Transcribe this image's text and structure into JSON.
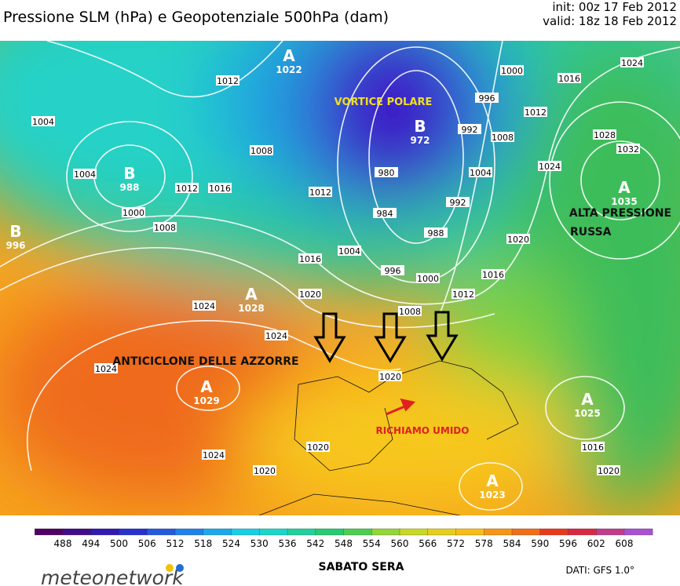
{
  "header": {
    "title": "Pressione SLM (hPa) e Geopotenziale 500hPa (dam)",
    "init": "init: 00z 17 Feb 2012",
    "valid": "valid: 18z 18 Feb 2012"
  },
  "map": {
    "centers": [
      {
        "letter": "A",
        "value": "1022"
      },
      {
        "letter": "B",
        "value": "972"
      },
      {
        "letter": "B",
        "value": "988"
      },
      {
        "letter": "B",
        "value": "996"
      },
      {
        "letter": "A",
        "value": "1035"
      },
      {
        "letter": "A",
        "value": "1028"
      },
      {
        "letter": "A",
        "value": "1029"
      },
      {
        "letter": "A",
        "value": "1025"
      },
      {
        "letter": "A",
        "value": "1023"
      }
    ],
    "annotations": {
      "polar_vortex": "VORTICE POLARE",
      "russian_high": [
        "ALTA PRESSIONE",
        "RUSSA"
      ],
      "azores_high": "ANTICICLONE DELLE AZZORRE",
      "humid_flow": "RICHIAMO UMIDO"
    },
    "isobar_labels": [
      "1012",
      "1004",
      "1004",
      "1008",
      "1012",
      "1016",
      "1000",
      "1008",
      "1012",
      "1016",
      "1020",
      "1024",
      "1024",
      "1024",
      "1024",
      "1020",
      "1020",
      "1020",
      "980",
      "984",
      "1004",
      "996",
      "988",
      "992",
      "1000",
      "1008",
      "1012",
      "1016",
      "1020",
      "1024",
      "1028",
      "1032",
      "1004",
      "1008",
      "996",
      "1000",
      "1012",
      "1016",
      "1024",
      "1016",
      "1020",
      "992"
    ]
  },
  "colorbar": {
    "ticks": [
      "488",
      "494",
      "500",
      "506",
      "512",
      "518",
      "524",
      "530",
      "536",
      "542",
      "548",
      "554",
      "560",
      "566",
      "572",
      "578",
      "584",
      "590",
      "596",
      "602",
      "608"
    ]
  },
  "footer": {
    "logo": "meteonetwork",
    "caption": "SABATO SERA",
    "source": "DATI: GFS 1.0°"
  }
}
